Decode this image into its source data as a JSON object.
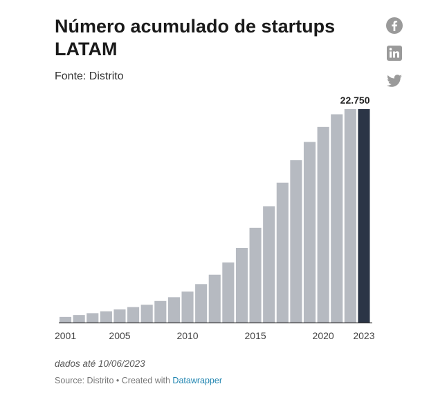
{
  "header": {
    "title": "Número acumulado de startups LATAM",
    "subtitle": "Fonte: Distrito"
  },
  "share_icons": [
    "facebook-icon",
    "linkedin-icon",
    "twitter-icon"
  ],
  "colors": {
    "bar": "#b6bac1",
    "highlight": "#2b3546",
    "axis": "#333333"
  },
  "chart_data": {
    "type": "bar",
    "title": "Número acumulado de startups LATAM",
    "categories": [
      "2001",
      "2002",
      "2003",
      "2004",
      "2005",
      "2006",
      "2007",
      "2008",
      "2009",
      "2010",
      "2011",
      "2012",
      "2013",
      "2014",
      "2015",
      "2016",
      "2017",
      "2018",
      "2019",
      "2020",
      "2021",
      "2022",
      "2023"
    ],
    "values": [
      600,
      800,
      1000,
      1200,
      1400,
      1650,
      1900,
      2300,
      2700,
      3300,
      4100,
      5100,
      6400,
      7950,
      10100,
      12400,
      14900,
      17300,
      19250,
      20850,
      22200,
      22750,
      22750
    ],
    "x_tick_labels": [
      "2001",
      "2005",
      "2010",
      "2015",
      "2020",
      "2023"
    ],
    "highlight": {
      "category": "2023",
      "label": "22.750"
    },
    "ylim": [
      0,
      22750
    ],
    "grid": false,
    "xlabel": "",
    "ylabel": ""
  },
  "footer": {
    "note": "dados até 10/06/2023",
    "source_prefix": "Source: Distrito • Created with ",
    "source_link": "Datawrapper"
  }
}
